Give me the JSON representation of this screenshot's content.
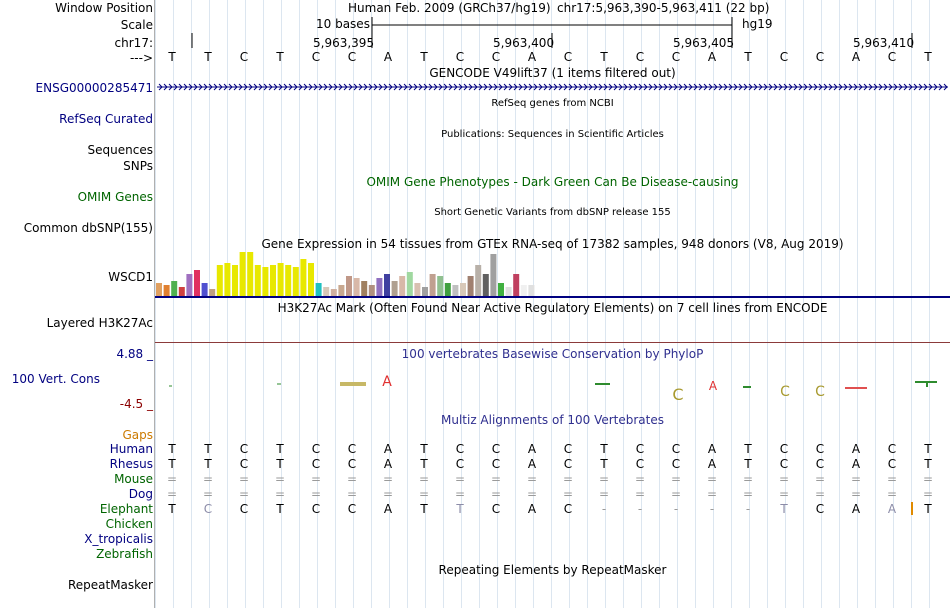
{
  "header": {
    "window_position_label": "Window Position",
    "scale_label": "Scale",
    "chrom_label": "chr17:",
    "strand_label": "--->",
    "assembly": "Human Feb. 2009 (GRCh37/hg19)",
    "position": "chr17:5,963,390-5,963,411 (22 bp)",
    "scale_text": "10 bases",
    "db": "hg19",
    "ticks": [
      "5,963,395",
      "5,963,400",
      "5,963,405",
      "5,963,410"
    ]
  },
  "sequence": [
    "T",
    "T",
    "C",
    "T",
    "C",
    "C",
    "A",
    "T",
    "C",
    "C",
    "A",
    "C",
    "T",
    "C",
    "C",
    "A",
    "T",
    "C",
    "C",
    "A",
    "C",
    "T"
  ],
  "tracks": {
    "gencode": {
      "title": "GENCODE V49lift37 (1 items filtered out)",
      "gene": "ENSG00000285471"
    },
    "refseq": {
      "title": "RefSeq genes from NCBI",
      "label": "RefSeq Curated"
    },
    "publications": {
      "title": "Publications: Sequences in Scientific Articles",
      "label": "Sequences"
    },
    "snps": {
      "label": "SNPs"
    },
    "omim": {
      "title": "OMIM Gene Phenotypes - Dark Green Can Be Disease-causing",
      "label": "OMIM Genes"
    },
    "dbsnp": {
      "title": "Short Genetic Variants from dbSNP release 155",
      "label": "Common dbSNP(155)"
    },
    "gtex": {
      "title": "Gene Expression in 54 tissues from GTEx RNA-seq of 17382 samples, 948 donors (V8, Aug 2019)",
      "label": "WSCD1"
    },
    "h3k27ac": {
      "title": "H3K27Ac Mark (Often Found Near Active Regulatory Elements) on 7 cell lines from ENCODE",
      "label": "Layered H3K27Ac"
    },
    "cons": {
      "title": "100 vertebrates Basewise Conservation by PhyloP",
      "label": "100 Vert. Cons",
      "max": "4.88 _",
      "min": "-4.5 _"
    },
    "multiz": {
      "title": "Multiz Alignments of 100 Vertebrates",
      "gaps_label": "Gaps"
    },
    "repeatmasker": {
      "title": "Repeating Elements by RepeatMasker",
      "label": "RepeatMasker"
    }
  },
  "species": [
    {
      "name": "Human",
      "bases": [
        "T",
        "T",
        "C",
        "T",
        "C",
        "C",
        "A",
        "T",
        "C",
        "C",
        "A",
        "C",
        "T",
        "C",
        "C",
        "A",
        "T",
        "C",
        "C",
        "A",
        "C",
        "T"
      ]
    },
    {
      "name": "Rhesus",
      "bases": [
        "T",
        "T",
        "C",
        "T",
        "C",
        "C",
        "A",
        "T",
        "C",
        "C",
        "A",
        "C",
        "T",
        "C",
        "C",
        "A",
        "T",
        "C",
        "C",
        "A",
        "C",
        "T"
      ]
    },
    {
      "name": "Mouse",
      "bases": [
        "=",
        "=",
        "=",
        "=",
        "=",
        "=",
        "=",
        "=",
        "=",
        "=",
        "=",
        "=",
        "=",
        "=",
        "=",
        "=",
        "=",
        "=",
        "=",
        "=",
        "=",
        "="
      ]
    },
    {
      "name": "Dog",
      "bases": [
        "=",
        "=",
        "=",
        "=",
        "=",
        "=",
        "=",
        "=",
        "=",
        "=",
        "=",
        "=",
        "=",
        "=",
        "=",
        "=",
        "=",
        "=",
        "=",
        "=",
        "=",
        "="
      ]
    },
    {
      "name": "Elephant",
      "bases": [
        "T",
        "C",
        "C",
        "T",
        "C",
        "C",
        "A",
        "T",
        "T",
        "C",
        "A",
        "C",
        "-",
        "-",
        "-",
        "-",
        "-",
        "T",
        "C",
        "A",
        "A",
        "T"
      ]
    },
    {
      "name": "Chicken"
    },
    {
      "name": "X_tropicalis"
    },
    {
      "name": "Zebrafish"
    }
  ],
  "gtex_values": [
    0.3,
    0.25,
    0.35,
    0.2,
    0.5,
    0.6,
    0.3,
    0.15,
    0.7,
    0.75,
    0.7,
    1.0,
    1.0,
    0.7,
    0.65,
    0.7,
    0.75,
    0.7,
    0.65,
    0.85,
    0.75,
    0.3,
    0.2,
    0.15,
    0.25,
    0.45,
    0.4,
    0.35,
    0.25,
    0.4,
    0.5,
    0.35,
    0.45,
    0.55,
    0.3,
    0.2,
    0.5,
    0.45,
    0.3,
    0.25,
    0.3,
    0.45,
    0.7,
    0.5,
    0.95,
    0.3,
    0.2,
    0.5,
    0.25,
    0.25
  ],
  "colors": {
    "blue_track": "#000080",
    "green": "#006400",
    "gap_orange": "#cc7a00"
  }
}
